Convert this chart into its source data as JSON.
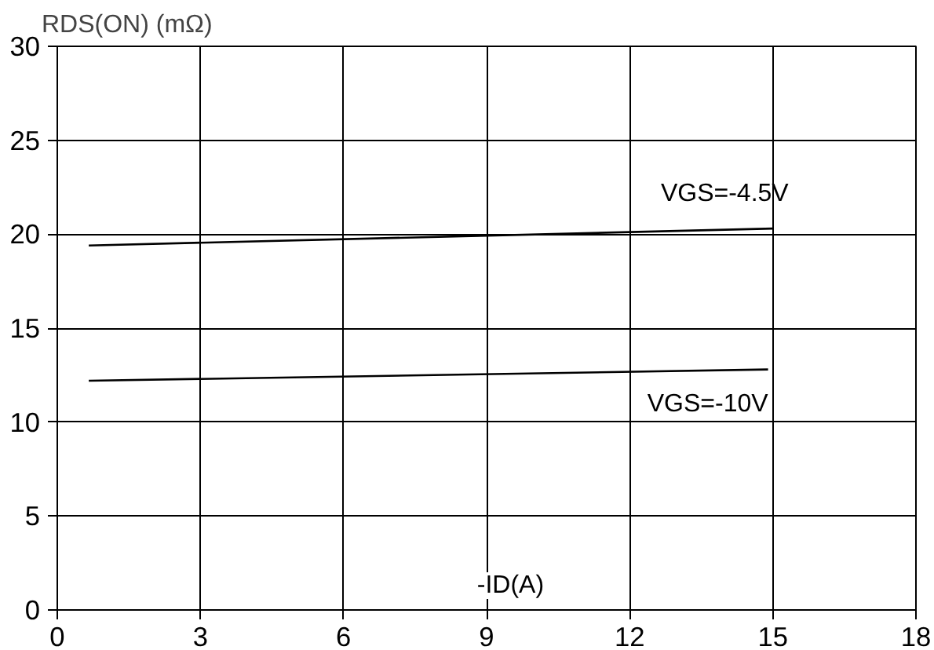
{
  "chart_data": {
    "type": "line",
    "xlabel": "-ID(A)",
    "ylabel": "RDS(ON) (mΩ)",
    "series": [
      {
        "name": "VGS=-4.5V",
        "color": "#000000",
        "x": [
          0.66,
          15.0
        ],
        "values": [
          19.4,
          20.3
        ]
      },
      {
        "name": "VGS=-10V",
        "color": "#000000",
        "x": [
          0.66,
          14.9
        ],
        "values": [
          12.2,
          12.8
        ]
      }
    ],
    "xlim": [
      0,
      18
    ],
    "xticks": [
      0,
      3,
      6,
      9,
      12,
      15,
      18
    ],
    "ylim": [
      0,
      30
    ],
    "yticks": [
      0,
      5,
      10,
      15,
      20,
      25,
      30
    ],
    "grid": true,
    "legend": false,
    "marker": "none",
    "line_style": "solid"
  }
}
